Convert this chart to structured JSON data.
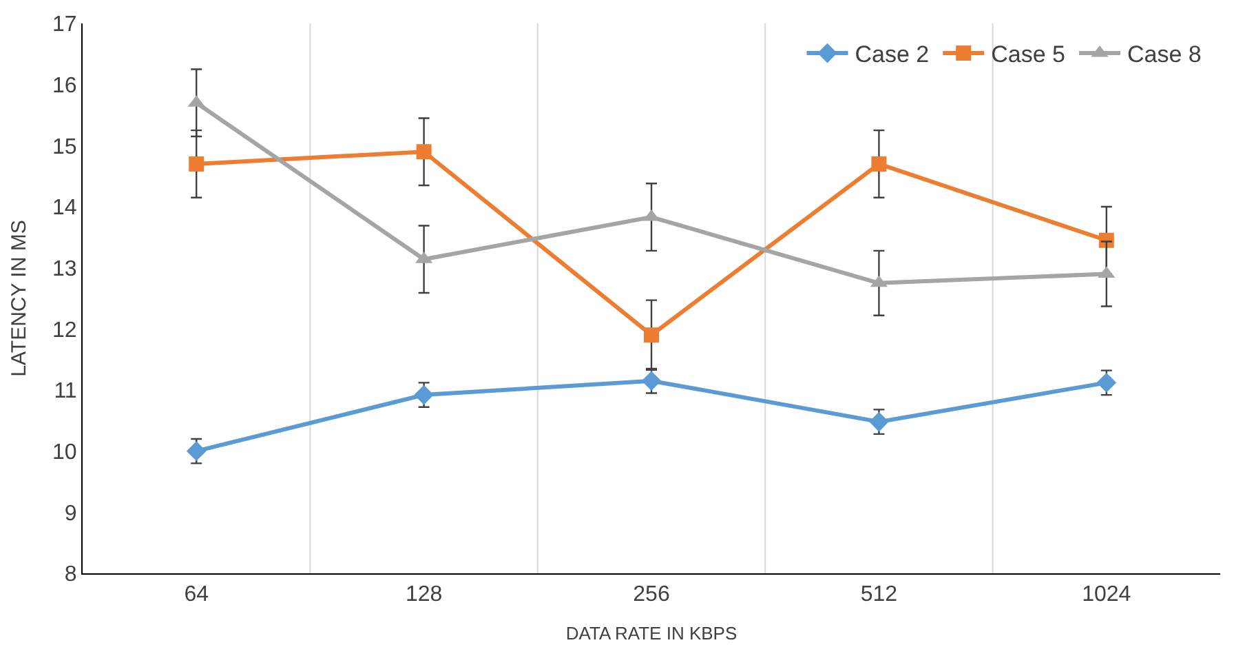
{
  "chart_data": {
    "type": "line",
    "xlabel": "DATA RATE IN KBPS",
    "ylabel": "LATENCY IN MS",
    "categories": [
      "64",
      "128",
      "256",
      "512",
      "1024"
    ],
    "series": [
      {
        "name": "Case 2",
        "color": "#5b9bd5",
        "marker": "diamond",
        "values": [
          10.0,
          10.92,
          11.15,
          10.48,
          11.12
        ],
        "errors": [
          0.2,
          0.2,
          0.2,
          0.2,
          0.2
        ]
      },
      {
        "name": "Case 5",
        "color": "#ed7d31",
        "marker": "square",
        "values": [
          14.7,
          14.9,
          11.9,
          14.7,
          13.45
        ],
        "errors": [
          0.55,
          0.55,
          0.57,
          0.55,
          0.55
        ]
      },
      {
        "name": "Case 8",
        "color": "#a5a5a5",
        "marker": "triangle",
        "values": [
          15.7,
          13.14,
          13.83,
          12.75,
          12.9
        ],
        "errors": [
          0.55,
          0.55,
          0.55,
          0.53,
          0.53
        ]
      }
    ],
    "ylim": [
      8,
      17
    ],
    "yticks": [
      8,
      9,
      10,
      11,
      12,
      13,
      14,
      15,
      16,
      17
    ],
    "grid": "x",
    "legend": "top right",
    "line_style": "solid"
  }
}
